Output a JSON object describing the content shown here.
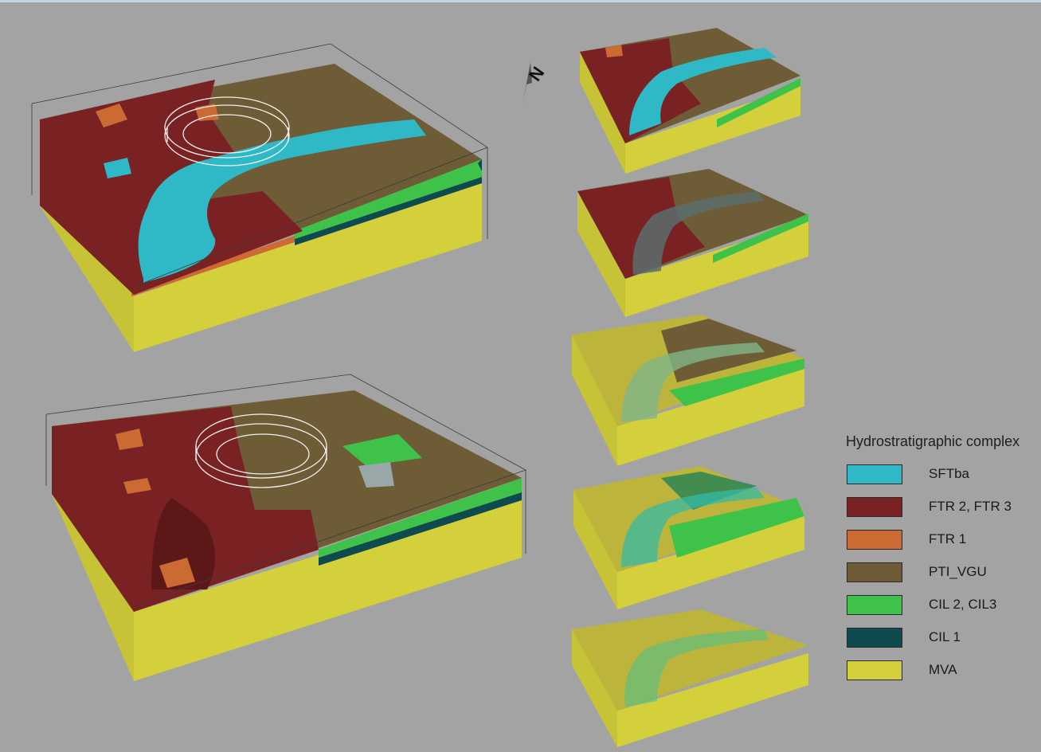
{
  "north_arrow": {
    "label": "N"
  },
  "legend": {
    "title": "Hydrostratigraphic complex",
    "items": [
      {
        "label": "SFTba",
        "color": "#2fb9c6"
      },
      {
        "label": "FTR 2, FTR 3",
        "color": "#7a2223"
      },
      {
        "label": "FTR 1",
        "color": "#cc6a33"
      },
      {
        "label": "PTI_VGU",
        "color": "#6e5c36"
      },
      {
        "label": "CIL 2, CIL3",
        "color": "#3fc24a"
      },
      {
        "label": "CIL 1",
        "color": "#0e4a4e"
      },
      {
        "label": "MVA",
        "color": "#d3cf3b"
      }
    ]
  }
}
